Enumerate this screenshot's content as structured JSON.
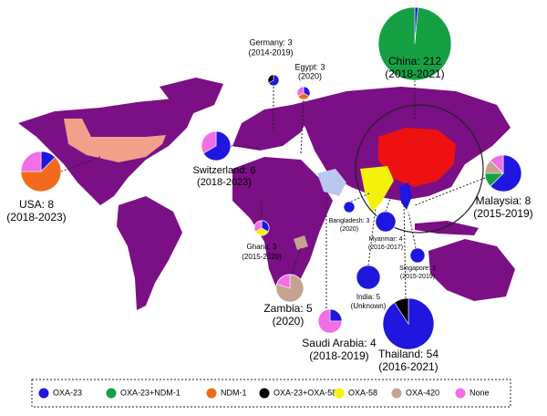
{
  "legend": [
    {
      "name": "OXA-23",
      "color": "#1f16e0"
    },
    {
      "name": "OXA-23+NDM-1",
      "color": "#14a043"
    },
    {
      "name": "NDM-1",
      "color": "#f26b1d"
    },
    {
      "name": "OXA-23+OXA-58",
      "color": "#000000"
    },
    {
      "name": "OXA-58",
      "color": "#f7f20a"
    },
    {
      "name": "OXA-420",
      "color": "#c5a48f"
    },
    {
      "name": "None",
      "color": "#f06ee6"
    }
  ],
  "locations": [
    {
      "label": "China: 212",
      "period": "(2018-2021)",
      "slices": [
        3,
        209,
        0,
        0,
        0,
        0,
        0
      ]
    },
    {
      "label": "Germany: 3",
      "period": "(2014-2019)",
      "slices": [
        2,
        0,
        0,
        1,
        0,
        0,
        0
      ]
    },
    {
      "label": "Egypt: 3",
      "period": "(2020)",
      "slices": [
        1,
        0,
        1,
        0,
        0,
        0,
        1
      ]
    },
    {
      "label": "Switzerland: 6",
      "period": "(2018-2023)",
      "slices": [
        4,
        0,
        0,
        0,
        0,
        0,
        2
      ]
    },
    {
      "label": "USA: 8",
      "period": "(2018-2023)",
      "slices": [
        1,
        0,
        5,
        0,
        0,
        0,
        2
      ]
    },
    {
      "label": "Ghana: 3",
      "period": "(2015-2020)",
      "slices": [
        1,
        0,
        0,
        0,
        1,
        0,
        1
      ]
    },
    {
      "label": "Zambia: 5",
      "period": "(2020)",
      "slices": [
        0,
        0,
        0,
        0,
        0,
        4,
        1
      ]
    },
    {
      "label": "Saudi Arabia: 4",
      "period": "(2018-2019)",
      "slices": [
        1,
        0,
        0,
        0,
        0,
        0,
        3
      ]
    },
    {
      "label": "Bangladesh: 3",
      "period": "(2020)",
      "slices": [
        3,
        0,
        0,
        0,
        0,
        0,
        0
      ]
    },
    {
      "label": "Myanmar: 4",
      "period": "(2016-2017)",
      "slices": [
        4,
        0,
        0,
        0,
        0,
        0,
        0
      ]
    },
    {
      "label": "India: 5",
      "period": "(Unknown)",
      "slices": [
        5,
        0,
        0,
        0,
        0,
        0,
        0
      ]
    },
    {
      "label": "Singapore: 3",
      "period": "(2015-2019)",
      "slices": [
        3,
        0,
        0,
        0,
        0,
        0,
        0
      ]
    },
    {
      "label": "Thailand: 54",
      "period": "(2016-2021)",
      "slices": [
        49,
        0,
        0,
        5,
        0,
        0,
        0
      ]
    },
    {
      "label": "Malaysia: 8",
      "period": "(2015-2019)",
      "slices": [
        5,
        1,
        0,
        0,
        0,
        1,
        1
      ]
    }
  ]
}
